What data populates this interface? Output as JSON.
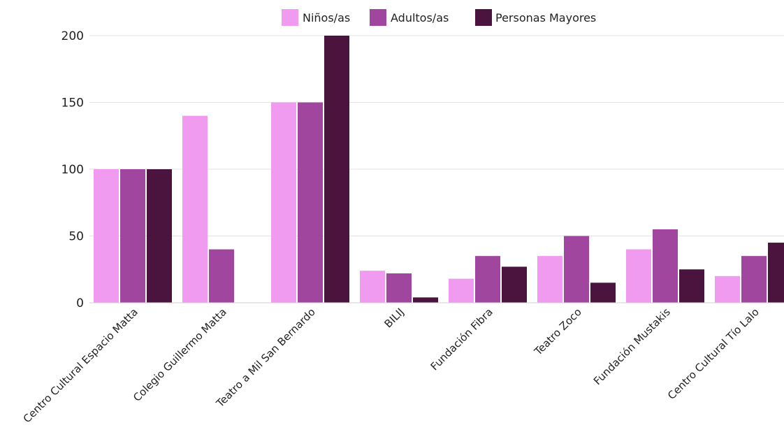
{
  "chart_data": {
    "type": "bar",
    "categories": [
      "Centro Cultural Espacio Matta",
      "Colegio Guillermo Matta",
      "Teatro a Mil San Bernardo",
      "BILIJ",
      "Fundación Fibra",
      "Teatro Zoco",
      "Fundación Mustakis",
      "Centro Cultural Tío Lalo"
    ],
    "series": [
      {
        "name": "Niños/as",
        "values": [
          100,
          140,
          150,
          24,
          18,
          35,
          40,
          20
        ]
      },
      {
        "name": "Adultos/as",
        "values": [
          100,
          40,
          150,
          22,
          35,
          50,
          55,
          35
        ]
      },
      {
        "name": "Personas Mayores",
        "values": [
          100,
          0,
          200,
          4,
          27,
          15,
          25,
          45
        ]
      }
    ],
    "ylim": [
      0,
      200
    ],
    "y_ticks": [
      0,
      50,
      100,
      150,
      200
    ],
    "grid": true,
    "legend": "top-center",
    "colors": [
      "#f09af0",
      "#a0469e",
      "#4a143f"
    ],
    "xlabel": "",
    "ylabel": "",
    "title": ""
  }
}
